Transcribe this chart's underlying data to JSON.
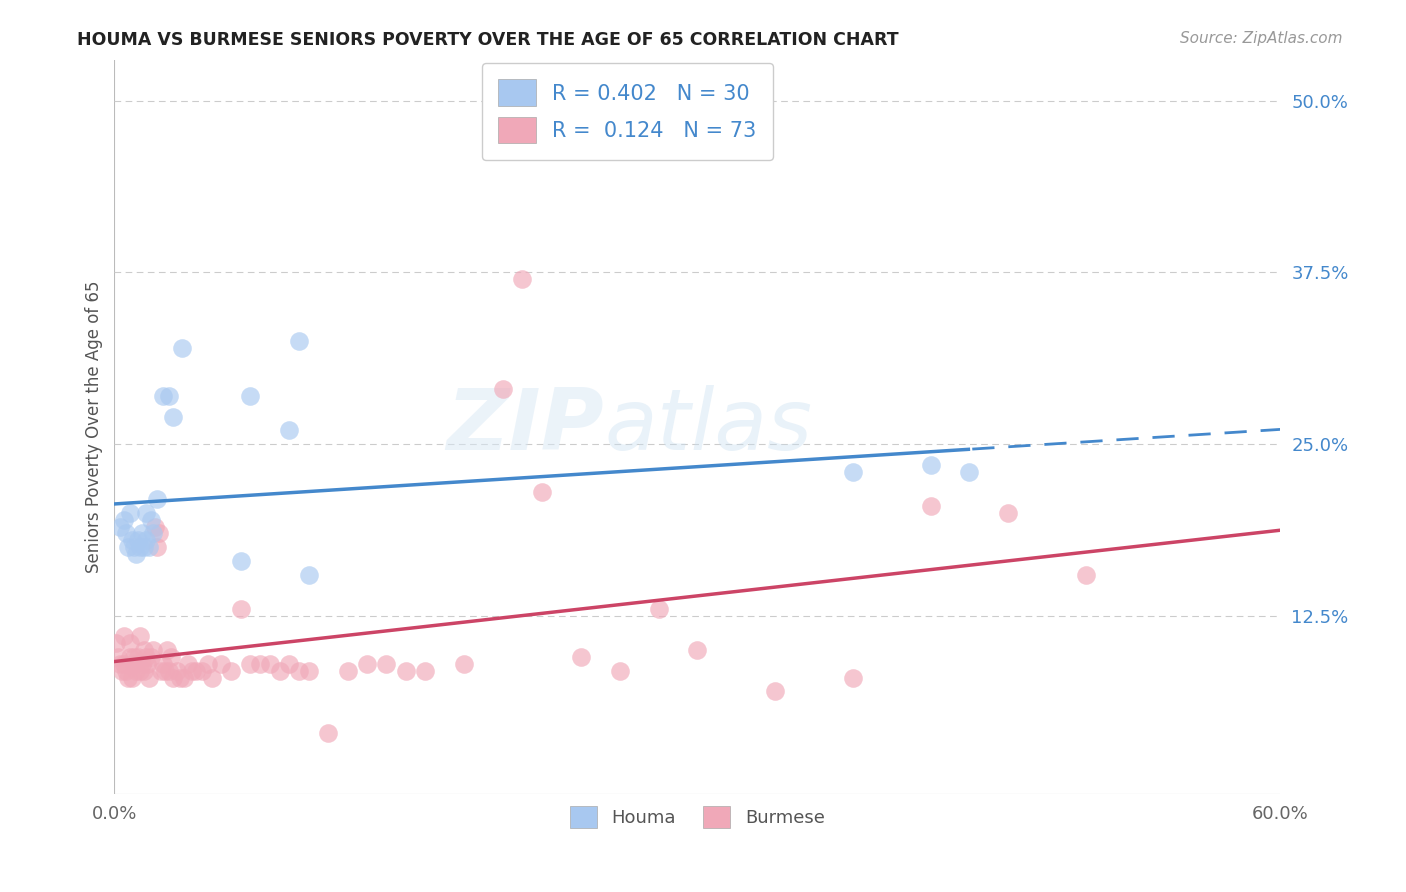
{
  "title": "HOUMA VS BURMESE SENIORS POVERTY OVER THE AGE OF 65 CORRELATION CHART",
  "source": "Source: ZipAtlas.com",
  "ylabel": "Seniors Poverty Over the Age of 65",
  "xlim": [
    0.0,
    0.6
  ],
  "ylim": [
    -0.005,
    0.53
  ],
  "ytick_positions": [
    0.125,
    0.25,
    0.375,
    0.5
  ],
  "ytick_labels": [
    "12.5%",
    "25.0%",
    "37.5%",
    "50.0%"
  ],
  "houma_R": 0.402,
  "houma_N": 30,
  "burmese_R": 0.124,
  "burmese_N": 73,
  "houma_color": "#a8c8f0",
  "burmese_color": "#f0a8b8",
  "houma_edge_color": "#a8c8f0",
  "burmese_edge_color": "#f0a8b8",
  "houma_line_color": "#4488cc",
  "burmese_line_color": "#cc4466",
  "legend_text_color": "#4488cc",
  "background_color": "#ffffff",
  "grid_color": "#cccccc",
  "watermark_zip": "ZIP",
  "watermark_atlas": "atlas",
  "houma_x": [
    0.003,
    0.005,
    0.006,
    0.007,
    0.008,
    0.009,
    0.01,
    0.011,
    0.012,
    0.013,
    0.014,
    0.015,
    0.016,
    0.016,
    0.018,
    0.019,
    0.02,
    0.022,
    0.025,
    0.028,
    0.03,
    0.035,
    0.065,
    0.07,
    0.09,
    0.095,
    0.1,
    0.38,
    0.42,
    0.44
  ],
  "houma_y": [
    0.19,
    0.195,
    0.185,
    0.175,
    0.2,
    0.18,
    0.175,
    0.17,
    0.18,
    0.175,
    0.185,
    0.175,
    0.18,
    0.2,
    0.175,
    0.195,
    0.185,
    0.21,
    0.285,
    0.285,
    0.27,
    0.32,
    0.165,
    0.285,
    0.26,
    0.325,
    0.155,
    0.23,
    0.235,
    0.23
  ],
  "burmese_x": [
    0.001,
    0.002,
    0.003,
    0.004,
    0.005,
    0.005,
    0.006,
    0.007,
    0.008,
    0.008,
    0.009,
    0.01,
    0.01,
    0.011,
    0.012,
    0.013,
    0.013,
    0.014,
    0.015,
    0.015,
    0.016,
    0.017,
    0.018,
    0.019,
    0.02,
    0.021,
    0.022,
    0.023,
    0.024,
    0.025,
    0.026,
    0.027,
    0.028,
    0.029,
    0.03,
    0.032,
    0.034,
    0.036,
    0.038,
    0.04,
    0.042,
    0.045,
    0.048,
    0.05,
    0.055,
    0.06,
    0.065,
    0.07,
    0.075,
    0.08,
    0.085,
    0.09,
    0.095,
    0.1,
    0.11,
    0.12,
    0.13,
    0.14,
    0.15,
    0.16,
    0.18,
    0.2,
    0.21,
    0.22,
    0.24,
    0.26,
    0.28,
    0.3,
    0.34,
    0.38,
    0.42,
    0.46,
    0.5
  ],
  "burmese_y": [
    0.105,
    0.095,
    0.09,
    0.085,
    0.09,
    0.11,
    0.085,
    0.08,
    0.095,
    0.105,
    0.08,
    0.095,
    0.09,
    0.085,
    0.095,
    0.085,
    0.11,
    0.09,
    0.1,
    0.085,
    0.095,
    0.09,
    0.08,
    0.095,
    0.1,
    0.19,
    0.175,
    0.185,
    0.085,
    0.09,
    0.085,
    0.1,
    0.085,
    0.095,
    0.08,
    0.085,
    0.08,
    0.08,
    0.09,
    0.085,
    0.085,
    0.085,
    0.09,
    0.08,
    0.09,
    0.085,
    0.13,
    0.09,
    0.09,
    0.09,
    0.085,
    0.09,
    0.085,
    0.085,
    0.04,
    0.085,
    0.09,
    0.09,
    0.085,
    0.085,
    0.09,
    0.29,
    0.37,
    0.215,
    0.095,
    0.085,
    0.13,
    0.1,
    0.07,
    0.08,
    0.205,
    0.2,
    0.155
  ]
}
